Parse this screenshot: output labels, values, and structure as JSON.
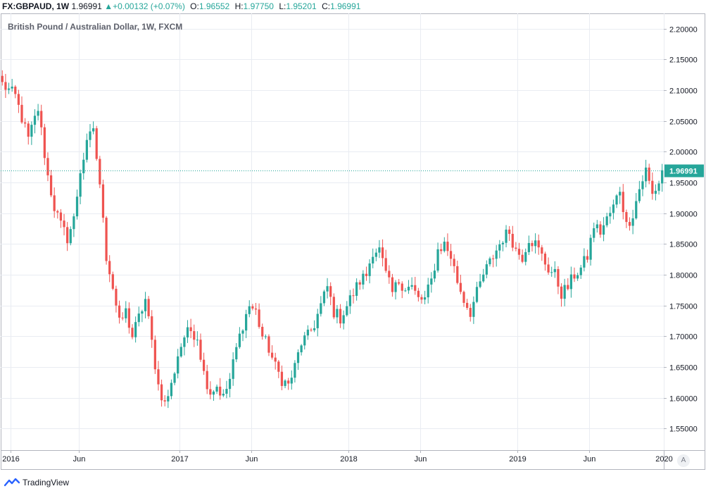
{
  "header": {
    "symbol": "FX:GBPAUD, 1W",
    "price": "1.96991",
    "change": "+0.00132 (+0.07%)",
    "ohlc": [
      {
        "label": "O:",
        "value": "1.96552"
      },
      {
        "label": "H:",
        "value": "1.97750"
      },
      {
        "label": "L:",
        "value": "1.95201"
      },
      {
        "label": "C:",
        "value": "1.96991"
      }
    ]
  },
  "subtitle": "British Pound / Australian Dollar, 1W, FXCM",
  "footer": {
    "brand": "TradingView"
  },
  "scale_toggle": "A",
  "colors": {
    "up": "#26a69a",
    "down": "#ef5350",
    "grid": "#e9ecf2",
    "axis": "#787b86",
    "price_line": "#26a69a"
  },
  "chart_data": {
    "type": "candlestick",
    "x_ticks": [
      "2016",
      "Jun",
      "2017",
      "Jun",
      "2018",
      "Jun",
      "2019",
      "Jun",
      "2020"
    ],
    "y_ticks": [
      "1.55000",
      "1.60000",
      "1.65000",
      "1.70000",
      "1.75000",
      "1.80000",
      "1.85000",
      "1.90000",
      "1.95000",
      "2.00000",
      "2.05000",
      "2.10000",
      "2.15000",
      "2.20000"
    ],
    "ylim": [
      1.515,
      2.225
    ],
    "last_price": "1.96991",
    "last_value": 1.96991,
    "close_path": [
      [
        0,
        2.11
      ],
      [
        4,
        2.09
      ],
      [
        8,
        2.02
      ],
      [
        11,
        2.07
      ],
      [
        14,
        1.96
      ],
      [
        16,
        1.91
      ],
      [
        18,
        1.88
      ],
      [
        20,
        1.86
      ],
      [
        22,
        1.89
      ],
      [
        24,
        1.97
      ],
      [
        26,
        2.01
      ],
      [
        28,
        2.04
      ],
      [
        30,
        1.94
      ],
      [
        31,
        1.9
      ],
      [
        32,
        1.83
      ],
      [
        34,
        1.78
      ],
      [
        36,
        1.72
      ],
      [
        38,
        1.74
      ],
      [
        40,
        1.7
      ],
      [
        42,
        1.73
      ],
      [
        44,
        1.76
      ],
      [
        46,
        1.69
      ],
      [
        48,
        1.62
      ],
      [
        50,
        1.59
      ],
      [
        52,
        1.62
      ],
      [
        54,
        1.67
      ],
      [
        56,
        1.7
      ],
      [
        58,
        1.71
      ],
      [
        60,
        1.7
      ],
      [
        62,
        1.64
      ],
      [
        64,
        1.61
      ],
      [
        66,
        1.62
      ],
      [
        68,
        1.6
      ],
      [
        70,
        1.63
      ],
      [
        72,
        1.68
      ],
      [
        74,
        1.72
      ],
      [
        76,
        1.75
      ],
      [
        78,
        1.74
      ],
      [
        80,
        1.7
      ],
      [
        82,
        1.68
      ],
      [
        84,
        1.65
      ],
      [
        86,
        1.63
      ],
      [
        88,
        1.62
      ],
      [
        90,
        1.65
      ],
      [
        92,
        1.69
      ],
      [
        94,
        1.7
      ],
      [
        96,
        1.72
      ],
      [
        98,
        1.75
      ],
      [
        100,
        1.78
      ],
      [
        102,
        1.74
      ],
      [
        104,
        1.73
      ],
      [
        106,
        1.75
      ],
      [
        108,
        1.77
      ],
      [
        110,
        1.79
      ],
      [
        112,
        1.8
      ],
      [
        114,
        1.84
      ],
      [
        116,
        1.84
      ],
      [
        118,
        1.8
      ],
      [
        120,
        1.77
      ],
      [
        122,
        1.79
      ],
      [
        124,
        1.78
      ],
      [
        126,
        1.78
      ],
      [
        128,
        1.76
      ],
      [
        130,
        1.76
      ],
      [
        132,
        1.79
      ],
      [
        134,
        1.84
      ],
      [
        136,
        1.85
      ],
      [
        138,
        1.83
      ],
      [
        140,
        1.79
      ],
      [
        142,
        1.76
      ],
      [
        144,
        1.74
      ],
      [
        146,
        1.77
      ],
      [
        148,
        1.8
      ],
      [
        150,
        1.82
      ],
      [
        152,
        1.84
      ],
      [
        154,
        1.86
      ],
      [
        156,
        1.87
      ],
      [
        158,
        1.84
      ],
      [
        160,
        1.83
      ],
      [
        162,
        1.86
      ],
      [
        164,
        1.85
      ],
      [
        166,
        1.83
      ],
      [
        168,
        1.81
      ],
      [
        170,
        1.8
      ],
      [
        172,
        1.77
      ],
      [
        174,
        1.78
      ],
      [
        176,
        1.8
      ],
      [
        178,
        1.81
      ],
      [
        180,
        1.83
      ],
      [
        182,
        1.88
      ],
      [
        184,
        1.87
      ],
      [
        186,
        1.89
      ],
      [
        188,
        1.91
      ],
      [
        190,
        1.94
      ],
      [
        192,
        1.88
      ],
      [
        194,
        1.9
      ],
      [
        196,
        1.94
      ],
      [
        198,
        1.97
      ],
      [
        200,
        1.93
      ],
      [
        202,
        1.95
      ],
      [
        203,
        1.96991
      ]
    ]
  }
}
